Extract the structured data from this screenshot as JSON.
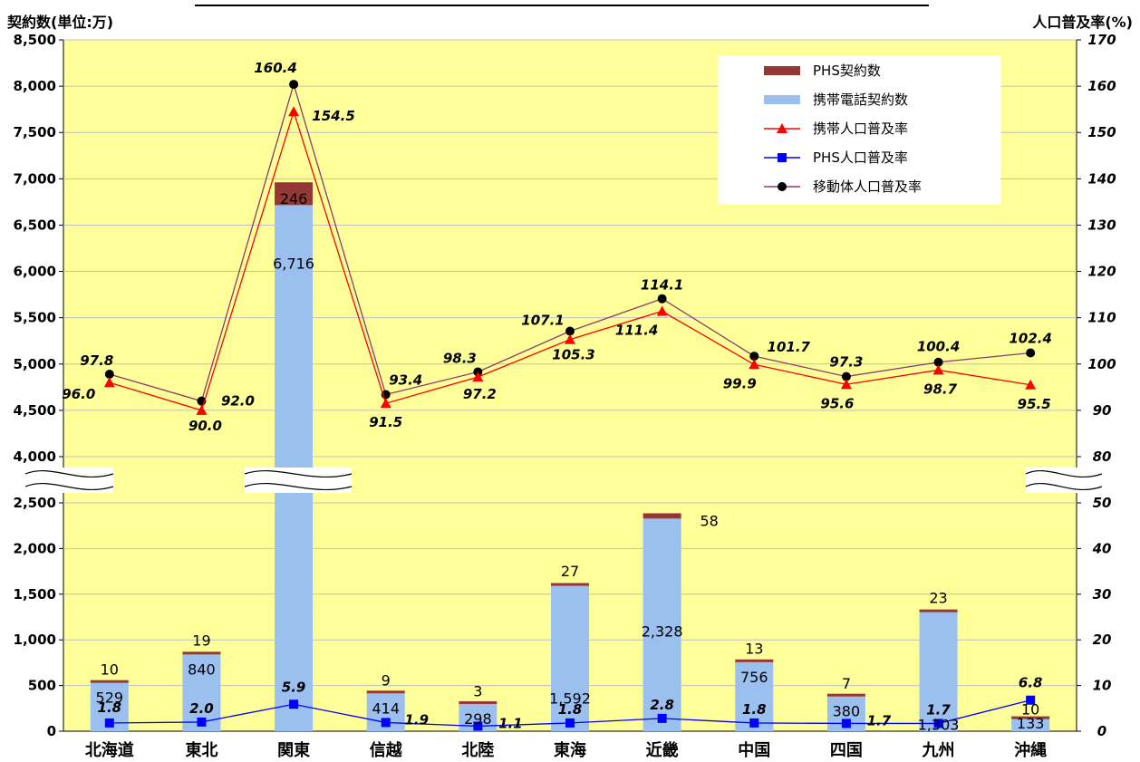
{
  "chart_data": {
    "type": "bar",
    "left_axis_title": "契約数(単位:万)",
    "right_axis_title": "人口普及率(%)",
    "categories": [
      "北海道",
      "東北",
      "関東",
      "信越",
      "北陸",
      "東海",
      "近畿",
      "中国",
      "四国",
      "九州",
      "沖縄"
    ],
    "left_ticks": [
      "0",
      "500",
      "1,000",
      "1,500",
      "2,000",
      "2,500",
      "4,000",
      "4,500",
      "5,000",
      "5,500",
      "6,000",
      "6,500",
      "7,000",
      "7,500",
      "8,000",
      "8,500"
    ],
    "right_ticks": [
      "0",
      "10",
      "20",
      "30",
      "40",
      "50",
      "80",
      "90",
      "100",
      "110",
      "120",
      "130",
      "140",
      "150",
      "160",
      "170"
    ],
    "left_axis_break": [
      2500,
      4000
    ],
    "right_axis_break": [
      50,
      80
    ],
    "colors": {
      "phs_bar": "#953735",
      "mobile_bar": "#9bbfee",
      "mobile_rate": "#ff0000",
      "phs_rate": "#0000ff",
      "total_rate": "#8b3a6e",
      "plot_bg": "#ffff99",
      "grid": "#c0c0c0"
    },
    "legend": [
      "PHS契約数",
      "携帯電話契約数",
      "携帯人口普及率",
      "PHS人口普及率",
      "移動体人口普及率"
    ],
    "series": [
      {
        "name": "携帯電話契約数",
        "kind": "bar",
        "values": [
          529,
          840,
          6716,
          414,
          298,
          1592,
          2328,
          756,
          380,
          1303,
          133
        ],
        "labels": [
          "529",
          "840",
          "6,716",
          "414",
          "298",
          "1,592",
          "2,328",
          "756",
          "380",
          "1,303",
          "133"
        ]
      },
      {
        "name": "PHS契約数",
        "kind": "bar",
        "values": [
          10,
          19,
          246,
          9,
          3,
          27,
          58,
          13,
          7,
          23,
          10
        ],
        "labels": [
          "10",
          "19",
          "246",
          "9",
          "3",
          "27",
          "58",
          "13",
          "7",
          "23",
          "10"
        ]
      },
      {
        "name": "携帯人口普及率",
        "kind": "line",
        "values": [
          96.0,
          90.0,
          154.5,
          91.5,
          97.2,
          105.3,
          111.4,
          99.9,
          95.6,
          98.7,
          95.5
        ],
        "labels": [
          "96.0",
          "90.0",
          "154.5",
          "91.5",
          "97.2",
          "105.3",
          "111.4",
          "99.9",
          "95.6",
          "98.7",
          "95.5"
        ]
      },
      {
        "name": "PHS人口普及率",
        "kind": "line",
        "values": [
          1.8,
          2.0,
          5.9,
          1.9,
          1.1,
          1.8,
          2.8,
          1.8,
          1.7,
          1.7,
          6.8
        ],
        "labels": [
          "1.8",
          "2.0",
          "5.9",
          "1.9",
          "1.1",
          "1.8",
          "2.8",
          "1.8",
          "1.7",
          "1.7",
          "6.8"
        ]
      },
      {
        "name": "移動体人口普及率",
        "kind": "line",
        "values": [
          97.8,
          92.0,
          160.4,
          93.4,
          98.3,
          107.1,
          114.1,
          101.7,
          97.3,
          100.4,
          102.4
        ],
        "labels": [
          "97.8",
          "92.0",
          "160.4",
          "93.4",
          "98.3",
          "107.1",
          "114.1",
          "101.7",
          "97.3",
          "100.4",
          "102.4"
        ]
      }
    ]
  }
}
